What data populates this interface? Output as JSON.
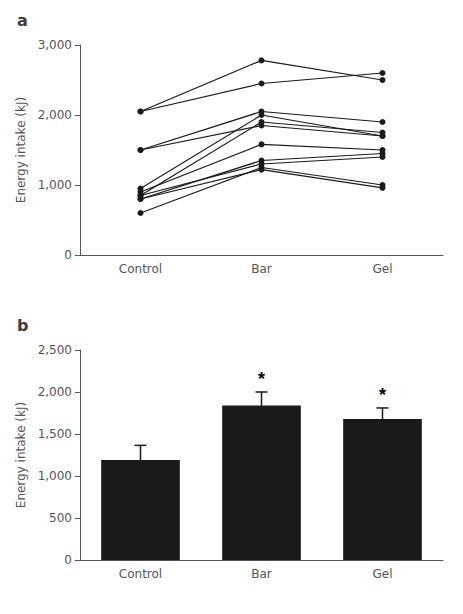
{
  "chart_data": [
    {
      "type": "line",
      "title": "a",
      "ylabel": "Energy intake (kJ)",
      "categories": [
        "Control",
        "Bar",
        "Gel"
      ],
      "color": "#1a1a1a",
      "marker": "circle",
      "series": [
        {
          "values": [
            2050,
            2450,
            2600
          ]
        },
        {
          "values": [
            2050,
            2780,
            2500
          ]
        },
        {
          "values": [
            1500,
            1850,
            1700
          ]
        },
        {
          "values": [
            1500,
            2050,
            1900
          ]
        },
        {
          "values": [
            950,
            2000,
            1700
          ]
        },
        {
          "values": [
            850,
            1900,
            1750
          ]
        },
        {
          "values": [
            900,
            1580,
            1500
          ]
        },
        {
          "values": [
            800,
            1350,
            1450
          ]
        },
        {
          "values": [
            850,
            1300,
            1400
          ]
        },
        {
          "values": [
            600,
            1250,
            1000
          ]
        },
        {
          "values": [
            800,
            1220,
            960
          ]
        }
      ],
      "ylim": [
        0,
        3000
      ],
      "yticks": [
        0,
        1000,
        2000,
        3000
      ],
      "grid": false
    },
    {
      "type": "bar",
      "title": "b",
      "ylabel": "Energy intake (kJ)",
      "categories": [
        "Control",
        "Bar",
        "Gel"
      ],
      "values": [
        1190,
        1840,
        1680
      ],
      "errors": [
        175,
        160,
        130
      ],
      "color": "#1a1a1a",
      "annotations": [
        {
          "category": "Bar",
          "text": "*"
        },
        {
          "category": "Gel",
          "text": "*"
        }
      ],
      "ylim": [
        0,
        2500
      ],
      "yticks": [
        0,
        500,
        1000,
        1500,
        2000,
        2500
      ],
      "grid": false
    }
  ]
}
